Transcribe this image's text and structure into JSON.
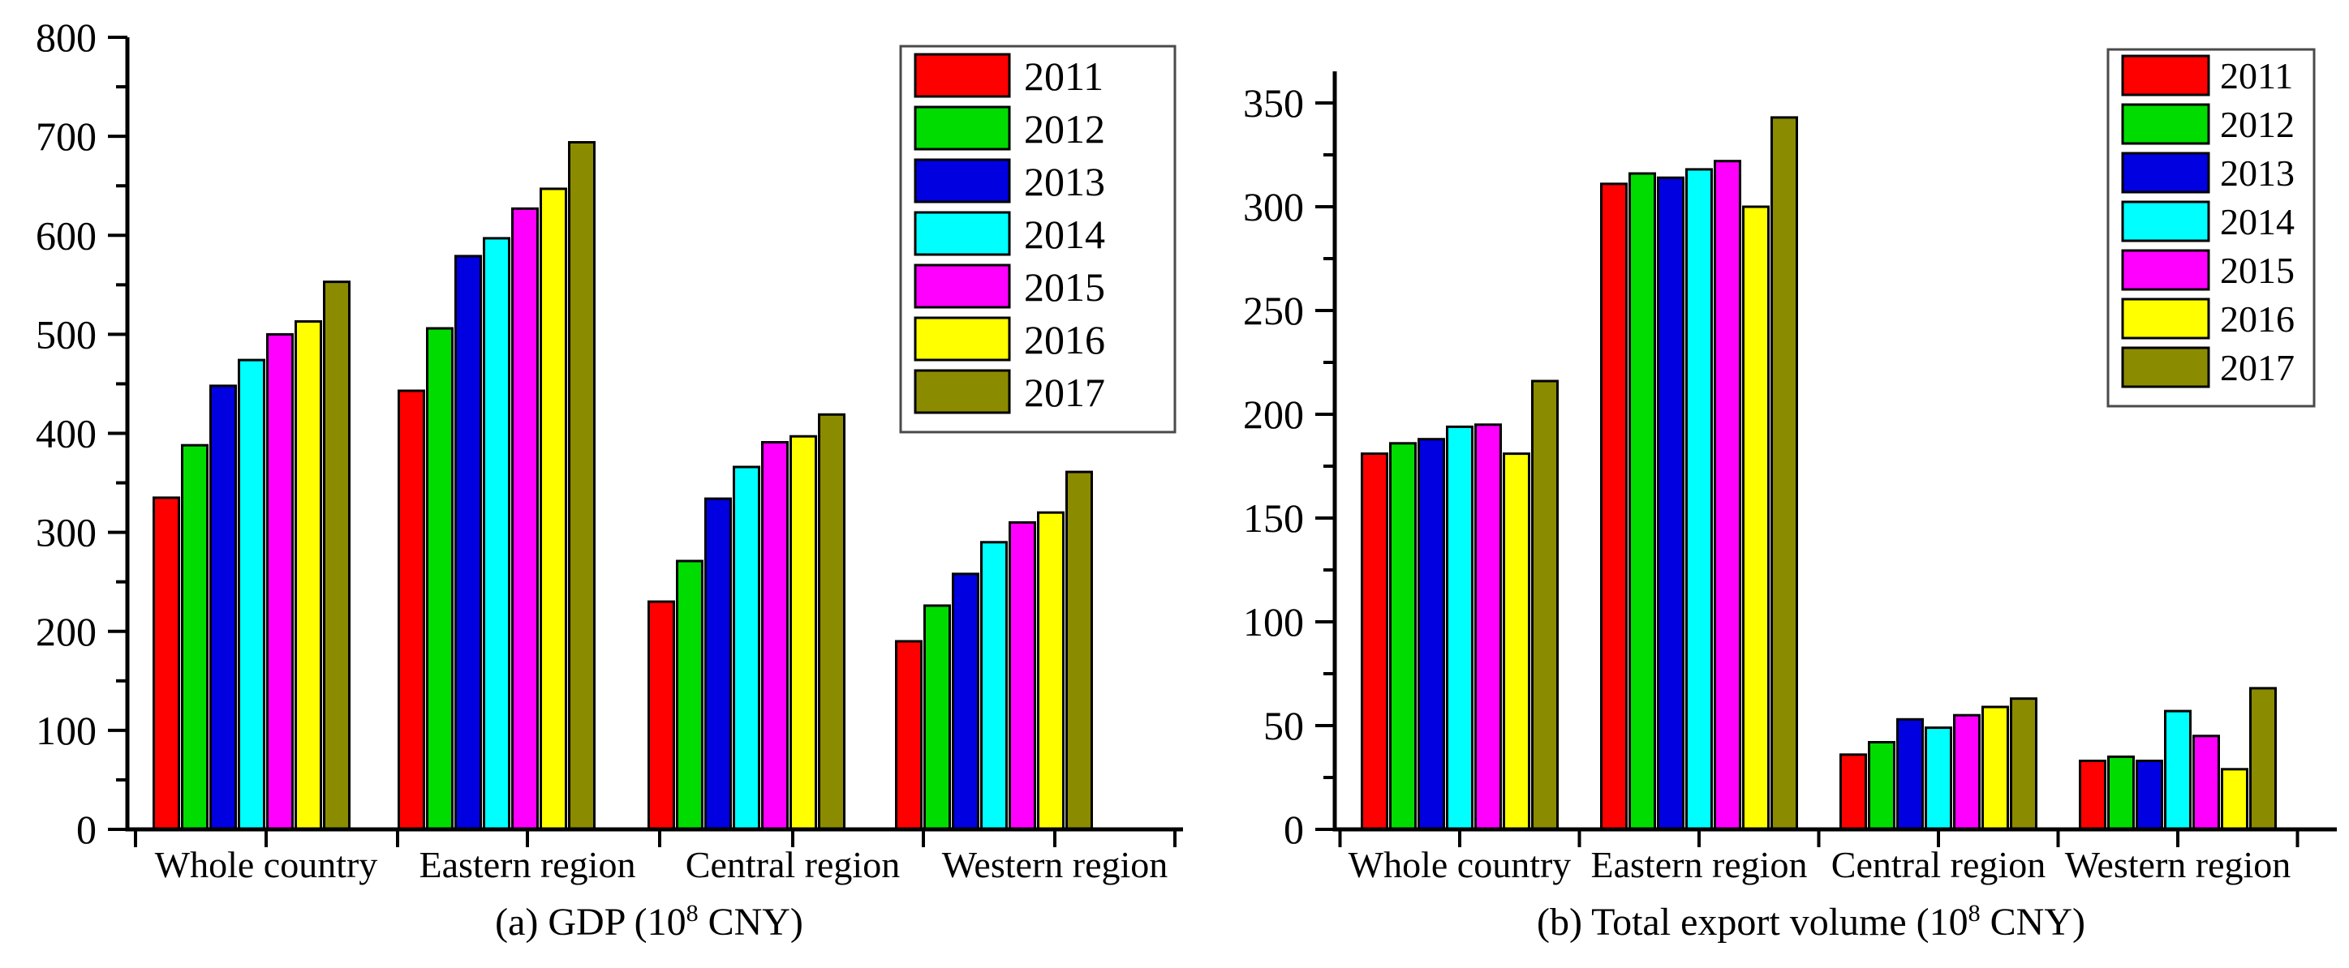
{
  "chart_data": [
    {
      "type": "bar",
      "id": "gdp",
      "caption": {
        "pre": "(a) GDP (10",
        "sup": "8",
        "post": " CNY)"
      },
      "categories": [
        "Whole country",
        "Eastern region",
        "Central region",
        "Western region"
      ],
      "series": [
        {
          "name": "2011",
          "color": "#FF0000",
          "values": [
            335,
            443,
            230,
            190
          ]
        },
        {
          "name": "2012",
          "color": "#00DC00",
          "values": [
            388,
            506,
            271,
            226
          ]
        },
        {
          "name": "2013",
          "color": "#0000E0",
          "values": [
            448,
            579,
            334,
            258
          ]
        },
        {
          "name": "2014",
          "color": "#00FFFF",
          "values": [
            474,
            597,
            366,
            290
          ]
        },
        {
          "name": "2015",
          "color": "#FF00FF",
          "values": [
            500,
            627,
            391,
            310
          ]
        },
        {
          "name": "2016",
          "color": "#FFFF00",
          "values": [
            513,
            647,
            397,
            320
          ]
        },
        {
          "name": "2017",
          "color": "#8B8B00",
          "values": [
            553,
            694,
            419,
            361
          ]
        }
      ],
      "y_axis": {
        "tick_values": [
          0,
          100,
          200,
          300,
          400,
          500,
          600,
          700,
          800
        ],
        "minor_step": 50,
        "range": [
          0,
          800
        ]
      },
      "legend": {
        "position": "top-right",
        "entries": [
          "2011",
          "2012",
          "2013",
          "2014",
          "2015",
          "2016",
          "2017"
        ]
      },
      "grid": "off"
    },
    {
      "type": "bar",
      "id": "export",
      "caption": {
        "pre": "(b) Total export volume (10",
        "sup": "8",
        "post": " CNY)"
      },
      "categories": [
        "Whole country",
        "Eastern region",
        "Central region",
        "Western region"
      ],
      "series": [
        {
          "name": "2011",
          "color": "#FF0000",
          "values": [
            181,
            311,
            36,
            33
          ]
        },
        {
          "name": "2012",
          "color": "#00DC00",
          "values": [
            186,
            316,
            42,
            35
          ]
        },
        {
          "name": "2013",
          "color": "#0000E0",
          "values": [
            188,
            314,
            53,
            33
          ]
        },
        {
          "name": "2014",
          "color": "#00FFFF",
          "values": [
            194,
            318,
            49,
            57
          ]
        },
        {
          "name": "2015",
          "color": "#FF00FF",
          "values": [
            195,
            322,
            55,
            45
          ]
        },
        {
          "name": "2016",
          "color": "#FFFF00",
          "values": [
            181,
            300,
            59,
            29
          ]
        },
        {
          "name": "2017",
          "color": "#8B8B00",
          "values": [
            216,
            343,
            63,
            68
          ]
        }
      ],
      "y_axis": {
        "tick_values": [
          0,
          50,
          100,
          150,
          200,
          250,
          300,
          350
        ],
        "minor_step": 25,
        "range": [
          0,
          365
        ]
      },
      "legend": {
        "position": "top-right",
        "entries": [
          "2011",
          "2012",
          "2013",
          "2014",
          "2015",
          "2016",
          "2017"
        ]
      },
      "grid": "off"
    }
  ]
}
